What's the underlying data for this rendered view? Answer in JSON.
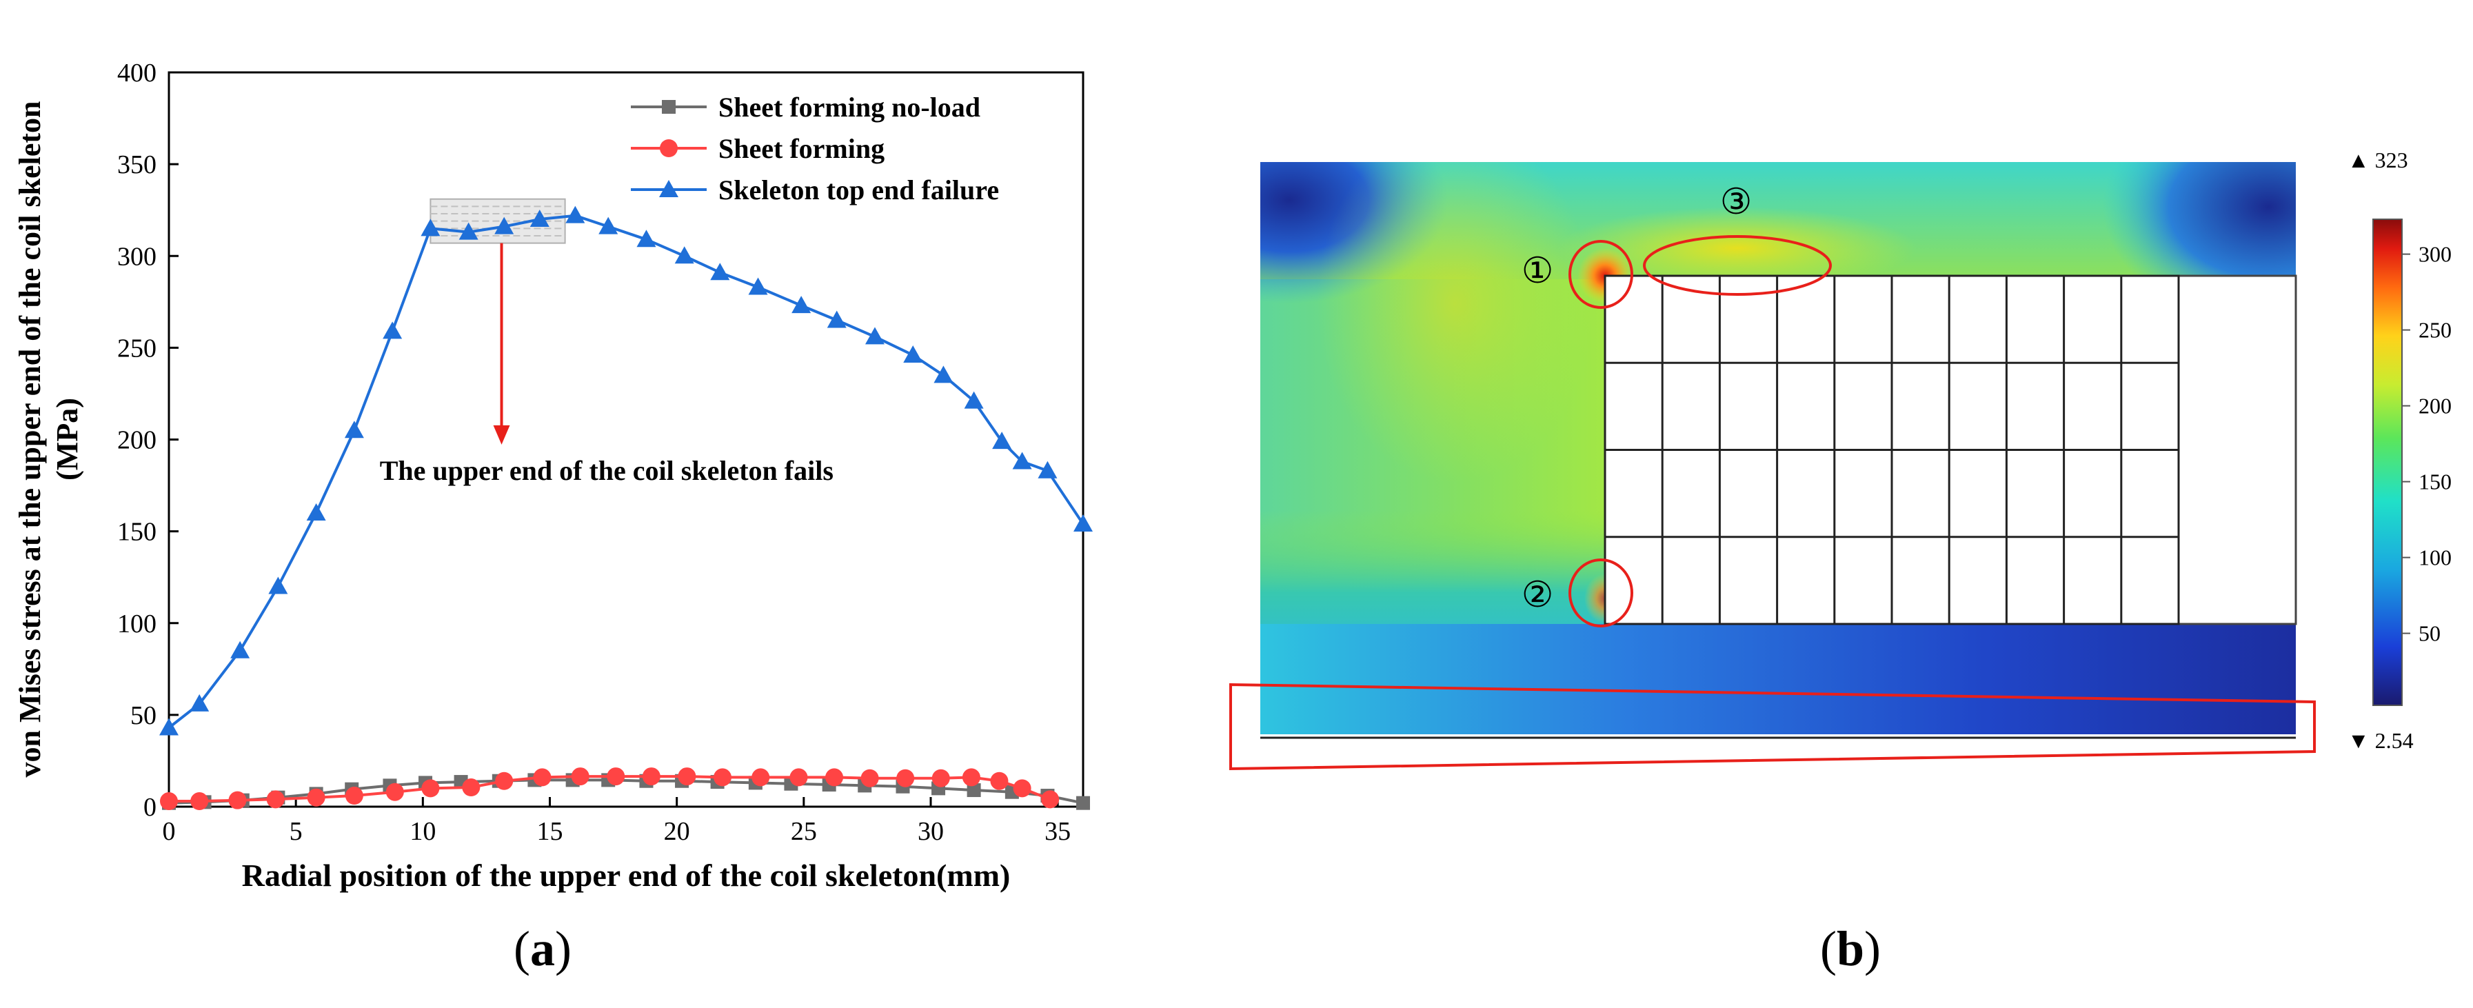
{
  "colors": {
    "grey_series": "#6d6d6d",
    "red_series": "#ff4444",
    "blue_series": "#1f6fd8",
    "annotation": "#e8201a"
  },
  "panel_a": {
    "caption_letter": "a",
    "annotation_text": "The upper end of the coil skeleton fails"
  },
  "panel_b": {
    "caption_letter": "b",
    "markers": [
      "①",
      "②",
      "③"
    ],
    "colorbar": {
      "max_label": "▲ 323",
      "min_label": "▼ 2.54",
      "ticks": [
        "300",
        "250",
        "200",
        "150",
        "100",
        "50"
      ],
      "tick_values": [
        300,
        250,
        200,
        150,
        100,
        50
      ],
      "min": 2.54,
      "max": 323
    }
  },
  "chart_data": [
    {
      "type": "line",
      "title": "",
      "xlabel": "Radial position of the upper end of the coil skeleton(mm)",
      "ylabel": "von Mises stress at the upper end of the coil skeleton (MPa)",
      "ylabel_lines": [
        "von Mises stress at the upper end of the coil skeleton",
        "(MPa)"
      ],
      "xlim": [
        0,
        36
      ],
      "ylim": [
        0,
        400
      ],
      "xticks": [
        0,
        5,
        10,
        15,
        20,
        25,
        30,
        35
      ],
      "yticks": [
        0,
        50,
        100,
        150,
        200,
        250,
        300,
        350,
        400
      ],
      "grid": false,
      "legend_position": "top-right",
      "series": [
        {
          "name": "Sheet forming no-load",
          "marker": "square",
          "x": [
            0,
            1.4,
            2.9,
            4.3,
            5.8,
            7.2,
            8.7,
            10.1,
            11.5,
            13.0,
            14.4,
            15.9,
            17.3,
            18.8,
            20.2,
            21.6,
            23.1,
            24.5,
            26.0,
            27.4,
            28.9,
            30.3,
            31.7,
            33.2,
            34.6,
            36.0
          ],
          "y": [
            2,
            2.5,
            3.5,
            5,
            7,
            9.5,
            11.5,
            13,
            13.5,
            14,
            14.5,
            14.5,
            14.5,
            14,
            14,
            13.5,
            13,
            12.5,
            12,
            11.5,
            11,
            10,
            9,
            8,
            6,
            2
          ]
        },
        {
          "name": "Sheet forming",
          "marker": "circle",
          "x": [
            0,
            1.2,
            2.7,
            4.2,
            5.8,
            7.3,
            8.9,
            10.3,
            11.9,
            13.2,
            14.7,
            16.2,
            17.6,
            19.0,
            20.4,
            21.8,
            23.3,
            24.8,
            26.2,
            27.6,
            29.0,
            30.4,
            31.6,
            32.7,
            33.6,
            34.7
          ],
          "y": [
            3,
            3,
            3.5,
            4,
            5,
            6,
            8,
            10,
            10.5,
            14,
            16,
            16.5,
            16.5,
            16.5,
            16.5,
            16,
            16,
            16,
            16,
            15.5,
            15.5,
            15.5,
            16,
            14,
            10,
            4
          ]
        },
        {
          "name": "Skeleton top end failure",
          "marker": "triangle",
          "x": [
            0,
            1.2,
            2.8,
            4.3,
            5.8,
            7.3,
            8.8,
            10.3,
            11.8,
            13.2,
            14.6,
            16.0,
            17.3,
            18.8,
            20.3,
            21.7,
            23.2,
            24.9,
            26.3,
            27.8,
            29.3,
            30.5,
            31.7,
            32.8,
            33.6,
            34.6,
            36.0
          ],
          "y": [
            43,
            56,
            85,
            120,
            160,
            205,
            259,
            315,
            313,
            316,
            320,
            322,
            316,
            309,
            300,
            291,
            283,
            273,
            265,
            256,
            246,
            235,
            221,
            199,
            188,
            183,
            154
          ]
        }
      ]
    }
  ]
}
